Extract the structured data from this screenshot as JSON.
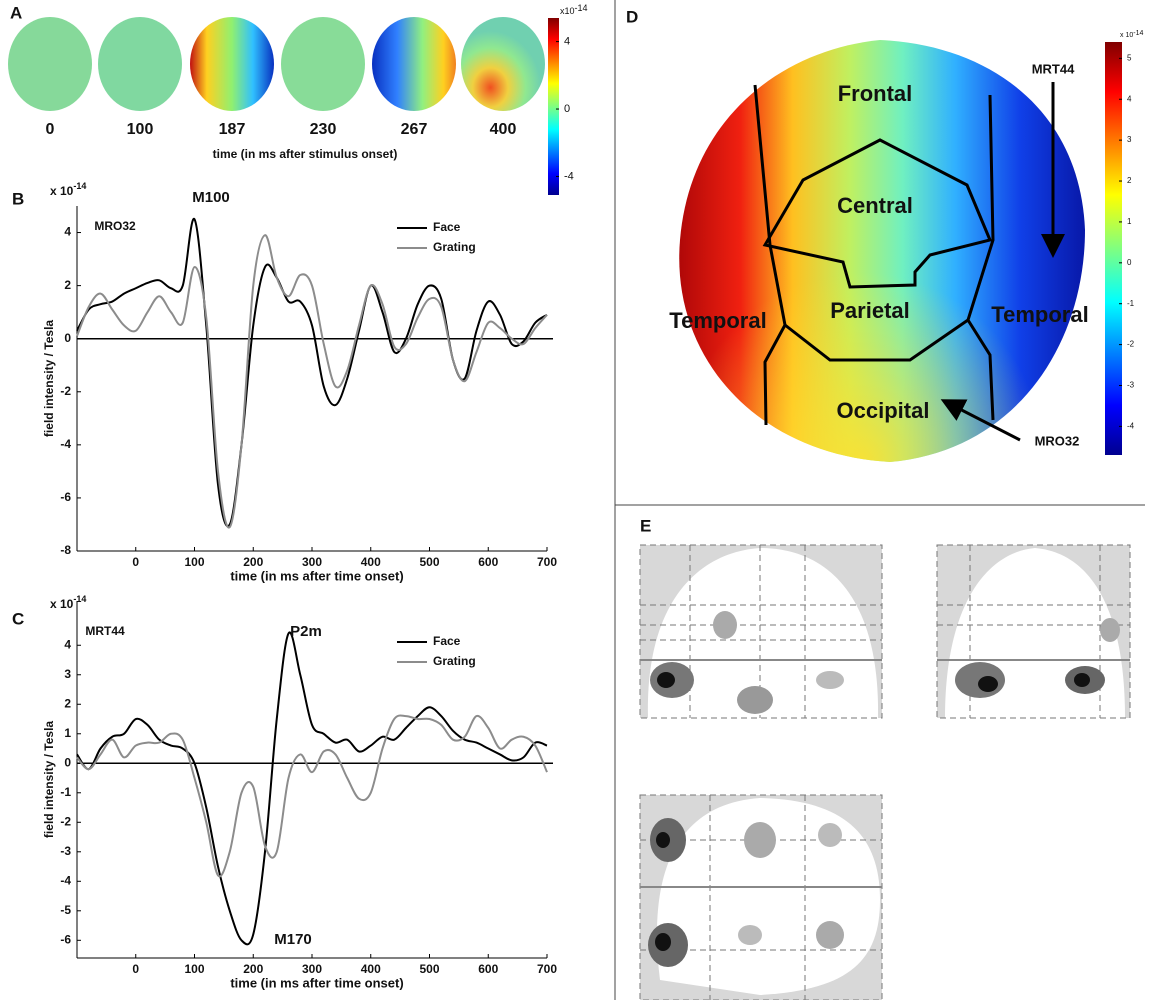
{
  "panel_a": {
    "label": "A",
    "map_labels": [
      "0",
      "100",
      "187",
      "230",
      "267",
      "400"
    ],
    "caption": "time (in ms after stimulus onset)",
    "colorbar": {
      "base": "x10",
      "exponent": "-14",
      "lim": [
        -5.1,
        5.4
      ],
      "ticks": [
        4,
        0,
        -4
      ]
    }
  },
  "chart_data": [
    {
      "type": "line",
      "panel": "B",
      "multiplier": {
        "base": "x 10",
        "exponent": "-14"
      },
      "ylabel": "field intensity / Tesla",
      "xlabel": "time (in ms after time onset)",
      "annotations": [
        "M100",
        "MRO32"
      ],
      "legend": "upper right",
      "zero_line": true,
      "xlim": [
        -100,
        700
      ],
      "xticks": [
        0,
        100,
        200,
        300,
        400,
        500,
        600,
        700
      ],
      "ylim": [
        -8,
        5
      ],
      "yticks": [
        -8,
        -6,
        -4,
        -2,
        0,
        2,
        4
      ],
      "x": [
        -100,
        -80,
        -60,
        -40,
        -20,
        0,
        20,
        40,
        60,
        80,
        100,
        120,
        140,
        160,
        180,
        200,
        220,
        240,
        260,
        280,
        300,
        320,
        340,
        360,
        380,
        400,
        420,
        440,
        460,
        480,
        500,
        520,
        540,
        560,
        580,
        600,
        620,
        640,
        660,
        680,
        700
      ],
      "series": [
        {
          "name": "Face",
          "color": "#000000",
          "values": [
            0.3,
            1.1,
            1.3,
            1.4,
            1.7,
            1.9,
            2.1,
            2.2,
            1.9,
            2.0,
            4.5,
            0.5,
            -5.5,
            -7.0,
            -4.0,
            0.5,
            2.7,
            2.3,
            1.4,
            1.4,
            0.5,
            -1.8,
            -2.5,
            -1.5,
            0.3,
            2.0,
            1.0,
            -0.5,
            0.0,
            1.3,
            2.0,
            1.5,
            -0.8,
            -1.5,
            0.3,
            1.4,
            0.9,
            -0.2,
            -0.1,
            0.6,
            0.9
          ]
        },
        {
          "name": "Grating",
          "color": "#8c8c8c",
          "values": [
            0.1,
            1.2,
            1.7,
            1.1,
            0.5,
            0.3,
            1.0,
            1.6,
            1.0,
            0.6,
            2.7,
            0.8,
            -5.0,
            -7.1,
            -4.0,
            2.0,
            3.9,
            2.3,
            1.6,
            2.4,
            2.0,
            -0.2,
            -1.8,
            -1.2,
            0.5,
            2.0,
            1.3,
            -0.3,
            -0.2,
            0.8,
            1.5,
            1.2,
            -0.8,
            -1.6,
            -0.5,
            0.6,
            0.4,
            0.0,
            -0.2,
            0.4,
            0.9
          ]
        }
      ]
    },
    {
      "type": "line",
      "panel": "C",
      "multiplier": {
        "base": "x 10",
        "exponent": "-14"
      },
      "ylabel": "field intensity / Tesla",
      "xlabel": "time (in ms after time onset)",
      "annotations": [
        "MRT44",
        "P2m",
        "M170"
      ],
      "legend": "upper right",
      "zero_line": true,
      "xlim": [
        -100,
        700
      ],
      "xticks": [
        0,
        100,
        200,
        300,
        400,
        500,
        600,
        700
      ],
      "ylim": [
        -6.6,
        5.5
      ],
      "yticks": [
        -6,
        -5,
        -4,
        -3,
        -2,
        -1,
        0,
        1,
        2,
        3,
        4
      ],
      "x": [
        -100,
        -80,
        -60,
        -40,
        -20,
        0,
        20,
        40,
        60,
        80,
        100,
        120,
        140,
        160,
        180,
        200,
        220,
        240,
        260,
        280,
        300,
        320,
        340,
        360,
        380,
        400,
        420,
        440,
        460,
        480,
        500,
        520,
        540,
        560,
        580,
        600,
        620,
        640,
        660,
        680,
        700
      ],
      "series": [
        {
          "name": "Face",
          "color": "#000000",
          "values": [
            0.3,
            -0.2,
            0.5,
            0.9,
            1.0,
            1.5,
            1.3,
            0.8,
            0.6,
            0.5,
            0.0,
            -1.5,
            -3.5,
            -5.0,
            -6.0,
            -5.8,
            -3.0,
            1.5,
            4.4,
            3.0,
            1.3,
            1.0,
            0.7,
            0.8,
            0.4,
            0.6,
            0.9,
            0.8,
            1.2,
            1.6,
            1.9,
            1.6,
            1.1,
            0.8,
            0.7,
            0.5,
            0.3,
            0.1,
            0.2,
            0.7,
            0.6
          ]
        },
        {
          "name": "Grating",
          "color": "#8c8c8c",
          "values": [
            0.2,
            -0.2,
            0.3,
            0.8,
            0.2,
            0.6,
            0.7,
            0.7,
            1.0,
            0.8,
            -0.5,
            -2.0,
            -3.8,
            -3.0,
            -1.0,
            -0.8,
            -2.8,
            -3.0,
            -0.5,
            0.3,
            -0.3,
            0.4,
            0.3,
            -0.5,
            -1.2,
            -1.0,
            0.5,
            1.5,
            1.6,
            1.5,
            1.5,
            1.3,
            0.8,
            0.9,
            1.6,
            1.2,
            0.5,
            0.8,
            0.9,
            0.6,
            -0.3
          ]
        }
      ]
    }
  ],
  "panel_d": {
    "label": "D",
    "regions": [
      "Frontal",
      "Central",
      "Parietal",
      "Temporal",
      "Temporal",
      "Occipital"
    ],
    "sensors": [
      "MRT44",
      "MRO32"
    ],
    "colorbar": {
      "base": "x 10",
      "exponent": "-14",
      "lim": [
        -4.7,
        5.4
      ],
      "ticks": [
        5,
        4,
        3,
        2,
        1,
        0,
        -1,
        -2,
        -3,
        -4
      ]
    }
  },
  "panel_e": {
    "label": "E"
  }
}
